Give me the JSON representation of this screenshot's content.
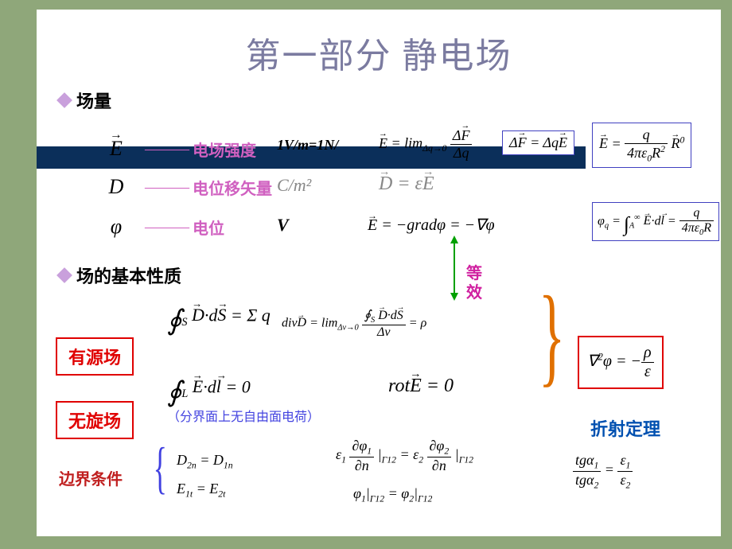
{
  "title": "第一部分  静电场",
  "sections": {
    "s1": "场量",
    "s2": "场的基本性质"
  },
  "rows": {
    "E": {
      "sym": "E",
      "label": "电场强度"
    },
    "D": {
      "sym": "D",
      "label": "电位移矢量"
    },
    "phi": {
      "sym": "φ",
      "label": "电位"
    }
  },
  "units": {
    "E": "1V/m=1N/",
    "D": "C/m²",
    "phi": "V"
  },
  "equations": {
    "E_def": "E⃗ = lim(Δq→0) ΔF⃗/Δq",
    "E_force": "ΔF⃗ = ΔqE⃗",
    "E_coulomb": "E⃗ = q/(4πε₀R²) R⃗⁰",
    "D_eq": "D⃗ = εE⃗",
    "phi_grad": "E⃗ = −gradφ = −∇φ",
    "phi_int": "φ_q = ∫ₐ^∞ E⃗·dl⃗ = q/(4πε₀R)",
    "gauss": "∮ₛ D⃗·dS⃗ = Σq",
    "div": "divD⃗ = lim(Δv→0) ∮ₛD⃗·dS⃗/Δv = ρ",
    "circ": "∮ₗ E⃗·dl⃗ = 0",
    "rot": "rotE⃗ = 0",
    "poisson": "∇²φ = −ρ/ε",
    "bc_D": "D₂ₙ = D₁ₙ",
    "bc_E": "E₁ₜ = E₂ₜ",
    "bc_phi_n": "ε₁ ∂φ₁/∂n|Γ12 = ε₂ ∂φ₂/∂n|Γ12",
    "bc_phi": "φ₁|Γ12 = φ₂|Γ12",
    "refract": "tgα₁/tgα₂ = ε₁/ε₂"
  },
  "boxes": {
    "source": "有源场",
    "irrot": "无旋场"
  },
  "labels": {
    "equiv1": "等",
    "equiv2": "效",
    "note": "（分界面上无自由面电荷）",
    "bc": "边界条件",
    "refract": "折射定理"
  },
  "colors": {
    "bg": "#8FA77A",
    "slide": "#FFFFFF",
    "title": "#7B7BA0",
    "bullet": "#C9A0DC",
    "darkbar": "#0B2F5A",
    "pink": "#D060C0",
    "red": "#E00000",
    "blue": "#0050B0",
    "green": "#00A000",
    "orange": "#E07000",
    "navybox": "#4040C0"
  }
}
